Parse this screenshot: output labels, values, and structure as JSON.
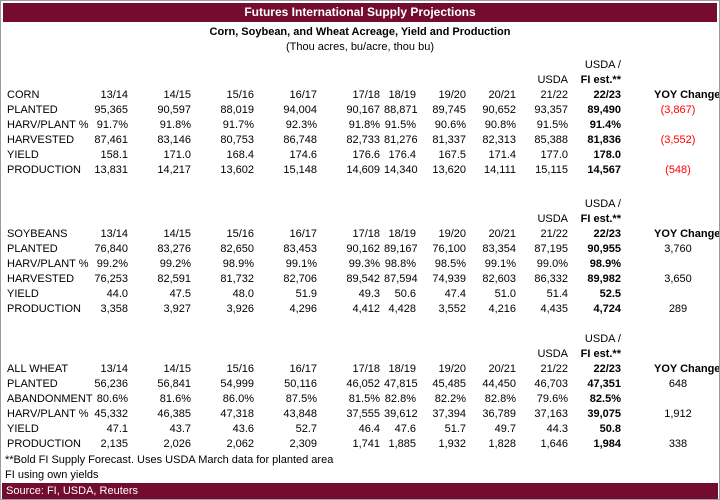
{
  "title": "Futures International Supply Projections",
  "subtitle": "Corn, Soybean, and Wheat Acreage, Yield and Production",
  "units_note": "(Thou acres, bu/acre, thou bu)",
  "column_headers": {
    "usda_slash": "USDA /",
    "usda": "USDA",
    "fi_est": "FI est.**",
    "yoy": "YOY Changes"
  },
  "years": [
    "13/14",
    "14/15",
    "15/16",
    "16/17",
    "17/18",
    "18/19",
    "19/20",
    "20/21",
    "21/22",
    "22/23"
  ],
  "sections": [
    {
      "name": "CORN",
      "rows": [
        {
          "label": "PLANTED",
          "values": [
            "95,365",
            "90,597",
            "88,019",
            "94,004",
            "90,167",
            "88,871",
            "89,745",
            "90,652",
            "93,357",
            "89,490"
          ],
          "yoy": "(3,867)",
          "yoy_negative": true
        },
        {
          "label": "HARV/PLANT %",
          "values": [
            "91.7%",
            "91.8%",
            "91.7%",
            "92.3%",
            "91.8%",
            "91.5%",
            "90.6%",
            "90.8%",
            "91.5%",
            "91.4%"
          ],
          "yoy": "",
          "yoy_negative": false
        },
        {
          "label": "HARVESTED",
          "values": [
            "87,461",
            "83,146",
            "80,753",
            "86,748",
            "82,733",
            "81,276",
            "81,337",
            "82,313",
            "85,388",
            "81,836"
          ],
          "yoy": "(3,552)",
          "yoy_negative": true
        },
        {
          "label": "YIELD",
          "values": [
            "158.1",
            "171.0",
            "168.4",
            "174.6",
            "176.6",
            "176.4",
            "167.5",
            "171.4",
            "177.0",
            "178.0"
          ],
          "yoy": "",
          "yoy_negative": false
        },
        {
          "label": "PRODUCTION",
          "values": [
            "13,831",
            "14,217",
            "13,602",
            "15,148",
            "14,609",
            "14,340",
            "13,620",
            "14,111",
            "15,115",
            "14,567"
          ],
          "yoy": "(548)",
          "yoy_negative": true
        }
      ]
    },
    {
      "name": "SOYBEANS",
      "rows": [
        {
          "label": "PLANTED",
          "values": [
            "76,840",
            "83,276",
            "82,650",
            "83,453",
            "90,162",
            "89,167",
            "76,100",
            "83,354",
            "87,195",
            "90,955"
          ],
          "yoy": "3,760",
          "yoy_negative": false
        },
        {
          "label": "HARV/PLANT %",
          "values": [
            "99.2%",
            "99.2%",
            "98.9%",
            "99.1%",
            "99.3%",
            "98.8%",
            "98.5%",
            "99.1%",
            "99.0%",
            "98.9%"
          ],
          "yoy": "",
          "yoy_negative": false
        },
        {
          "label": "HARVESTED",
          "values": [
            "76,253",
            "82,591",
            "81,732",
            "82,706",
            "89,542",
            "87,594",
            "74,939",
            "82,603",
            "86,332",
            "89,982"
          ],
          "yoy": "3,650",
          "yoy_negative": false
        },
        {
          "label": "YIELD",
          "values": [
            "44.0",
            "47.5",
            "48.0",
            "51.9",
            "49.3",
            "50.6",
            "47.4",
            "51.0",
            "51.4",
            "52.5"
          ],
          "yoy": "",
          "yoy_negative": false
        },
        {
          "label": "PRODUCTION",
          "values": [
            "3,358",
            "3,927",
            "3,926",
            "4,296",
            "4,412",
            "4,428",
            "3,552",
            "4,216",
            "4,435",
            "4,724"
          ],
          "yoy": "289",
          "yoy_negative": false
        }
      ]
    },
    {
      "name": "ALL WHEAT",
      "rows": [
        {
          "label": "PLANTED",
          "values": [
            "56,236",
            "56,841",
            "54,999",
            "50,116",
            "46,052",
            "47,815",
            "45,485",
            "44,450",
            "46,703",
            "47,351"
          ],
          "yoy": "648",
          "yoy_negative": false
        },
        {
          "label": "ABANDONMENT",
          "values": [
            "80.6%",
            "81.6%",
            "86.0%",
            "87.5%",
            "81.5%",
            "82.8%",
            "82.2%",
            "82.8%",
            "79.6%",
            "82.5%"
          ],
          "yoy": "",
          "yoy_negative": false
        },
        {
          "label": "HARV/PLANT %",
          "values": [
            "45,332",
            "46,385",
            "47,318",
            "43,848",
            "37,555",
            "39,612",
            "37,394",
            "36,789",
            "37,163",
            "39,075"
          ],
          "yoy": "1,912",
          "yoy_negative": false
        },
        {
          "label": "YIELD",
          "values": [
            "47.1",
            "43.7",
            "43.6",
            "52.7",
            "46.4",
            "47.6",
            "51.7",
            "49.7",
            "44.3",
            "50.8"
          ],
          "yoy": "",
          "yoy_negative": false
        },
        {
          "label": "PRODUCTION",
          "values": [
            "2,135",
            "2,026",
            "2,062",
            "2,309",
            "1,741",
            "1,885",
            "1,932",
            "1,828",
            "1,646",
            "1,984"
          ],
          "yoy": "338",
          "yoy_negative": false
        }
      ]
    }
  ],
  "footnotes": [
    "**Bold FI Supply Forecast.  Uses USDA March data for planted area",
    "FI using own yields"
  ],
  "source": "Source: FI, USDA, Reuters",
  "colors": {
    "maroon": "#730C2F",
    "negative": "#FF0000"
  }
}
